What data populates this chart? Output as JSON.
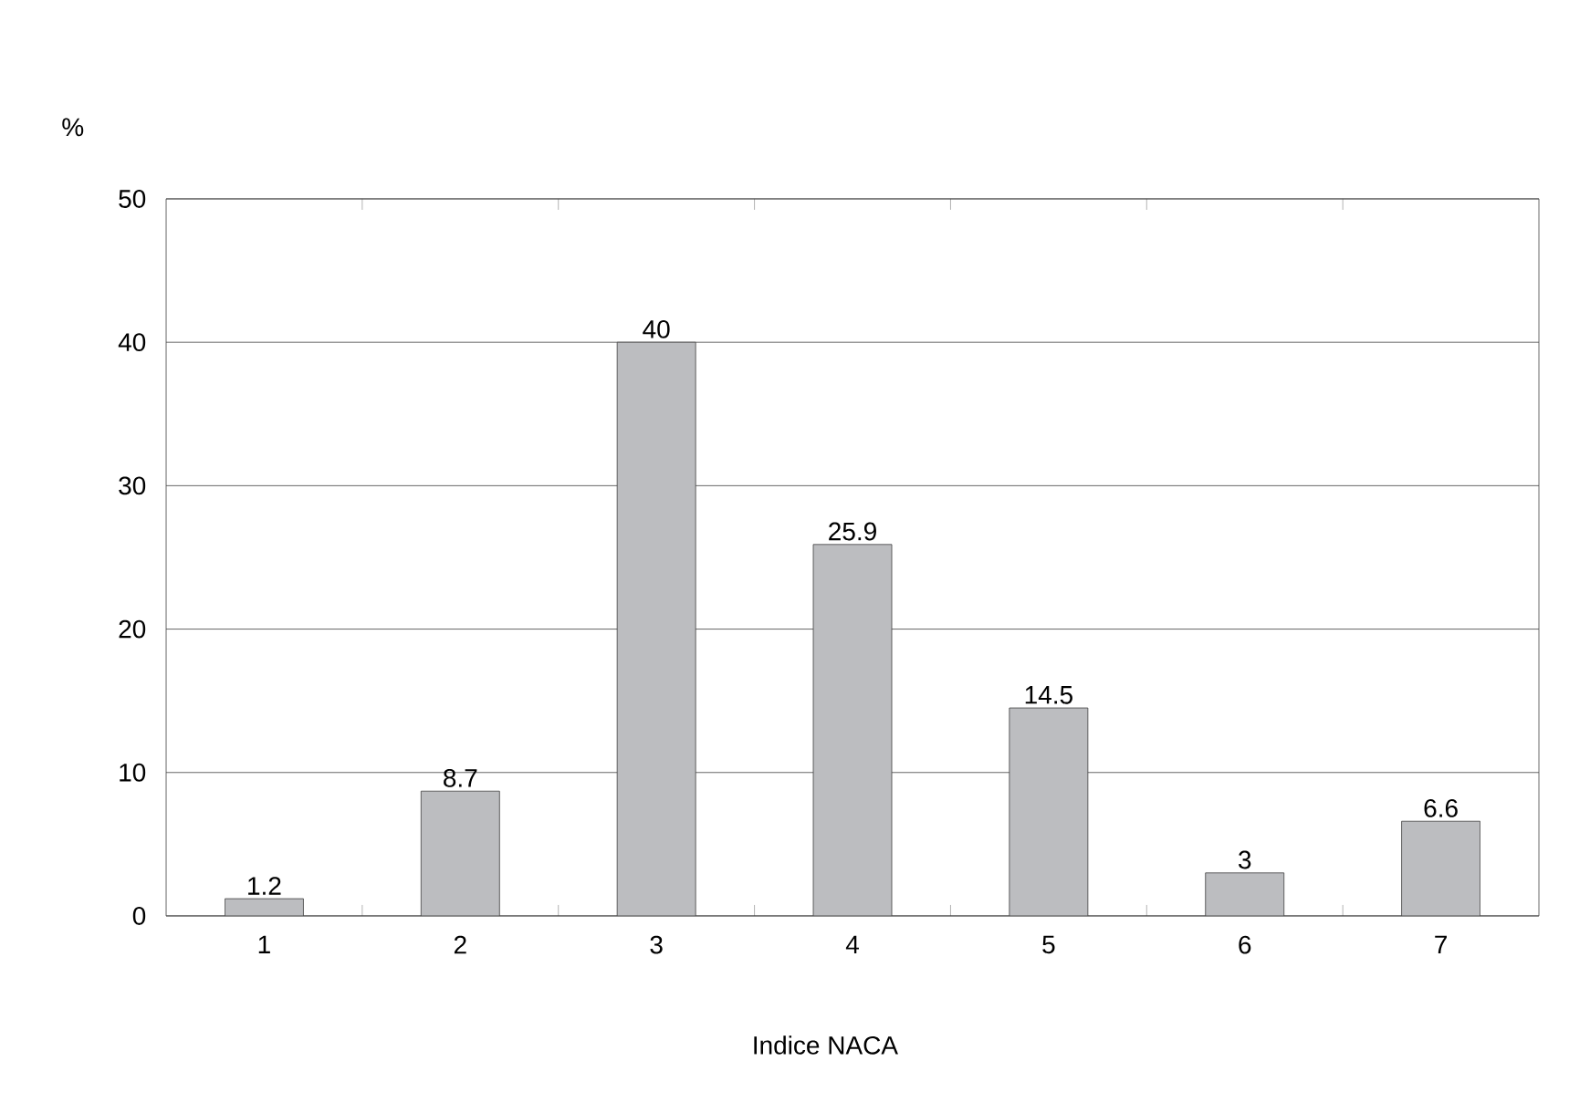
{
  "chart_data": {
    "type": "bar",
    "xlabel": "Indice NACA",
    "ylabel": "%",
    "categories": [
      "1",
      "2",
      "3",
      "4",
      "5",
      "6",
      "7"
    ],
    "values": [
      1.2,
      8.7,
      40,
      25.9,
      14.5,
      3,
      6.6
    ],
    "color": "#bcbdc0",
    "ylim": [
      0,
      50
    ],
    "yticks": [
      0,
      10,
      20,
      30,
      40,
      50
    ],
    "grid": "y",
    "data_labels": true
  }
}
